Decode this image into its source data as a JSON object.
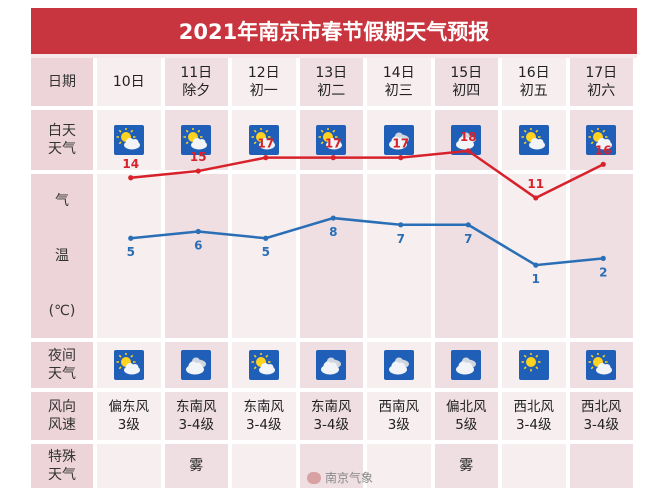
{
  "title": "2021年南京市春节假期天气预报",
  "row_labels": {
    "date": "日期",
    "day_weather_l1": "白天",
    "day_weather_l2": "天气",
    "temp_l1": "气",
    "temp_l2": "温",
    "temp_l3": "(℃)",
    "night_weather_l1": "夜间",
    "night_weather_l2": "天气",
    "wind_l1": "风向",
    "wind_l2": "风速",
    "special_l1": "特殊",
    "special_l2": "天气"
  },
  "days": [
    {
      "date": "10日",
      "note": "",
      "day_icon": "sunny-cloudy-icon",
      "night_icon": "sunny-cloudy-icon",
      "wind_dir": "偏东风",
      "wind_level": "3级",
      "special": ""
    },
    {
      "date": "11日",
      "note": "除夕",
      "day_icon": "sunny-cloudy-icon",
      "night_icon": "cloudy-icon",
      "wind_dir": "东南风",
      "wind_level": "3-4级",
      "special": "雾"
    },
    {
      "date": "12日",
      "note": "初一",
      "day_icon": "sunny-cloudy-icon",
      "night_icon": "sunny-cloudy-icon",
      "wind_dir": "东南风",
      "wind_level": "3-4级",
      "special": ""
    },
    {
      "date": "13日",
      "note": "初二",
      "day_icon": "sunny-cloudy-icon",
      "night_icon": "cloudy-icon",
      "wind_dir": "东南风",
      "wind_level": "3-4级",
      "special": ""
    },
    {
      "date": "14日",
      "note": "初三",
      "day_icon": "cloudy-icon",
      "night_icon": "cloudy-icon",
      "wind_dir": "西南风",
      "wind_level": "3级",
      "special": ""
    },
    {
      "date": "15日",
      "note": "初四",
      "day_icon": "cloudy-icon",
      "night_icon": "cloudy-icon",
      "wind_dir": "偏北风",
      "wind_level": "5级",
      "special": "雾"
    },
    {
      "date": "16日",
      "note": "初五",
      "day_icon": "sunny-cloudy-icon",
      "night_icon": "sunny-icon",
      "wind_dir": "西北风",
      "wind_level": "3-4级",
      "special": ""
    },
    {
      "date": "17日",
      "note": "初六",
      "day_icon": "sunny-cloudy-icon",
      "night_icon": "sunny-cloudy-icon",
      "wind_dir": "西北风",
      "wind_level": "3-4级",
      "special": ""
    }
  ],
  "chart_data": {
    "type": "line",
    "categories": [
      "10日",
      "11日",
      "12日",
      "13日",
      "14日",
      "15日",
      "16日",
      "17日"
    ],
    "series": [
      {
        "values": [
          14,
          15,
          17,
          17,
          17,
          18,
          11,
          16
        ],
        "color": "#d7222b"
      },
      {
        "values": [
          5,
          6,
          5,
          8,
          7,
          7,
          1,
          2
        ],
        "color": "#2a6fb6"
      }
    ],
    "ylabel": "气温(℃)",
    "ylim": [
      -3,
      22
    ]
  },
  "watermark": "南京气象",
  "colors": {
    "title_bg": "#c8353f",
    "icon_bg": "#1f5fb8",
    "high": "#d7222b",
    "low": "#2a6fb6"
  }
}
